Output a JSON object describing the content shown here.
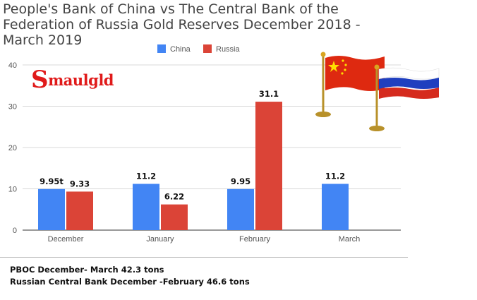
{
  "title": "People's Bank of China vs  The Central Bank of the Federation of Russia Gold Reserves December 2018 - March 2019",
  "logo_text": "Smaulgld",
  "colors": {
    "china": "#4285f4",
    "russia": "#db4437",
    "grid": "#d9d9d9",
    "title": "#444444"
  },
  "chart_data": {
    "type": "bar",
    "categories": [
      "December",
      "January",
      "February",
      "March"
    ],
    "series": [
      {
        "name": "China",
        "color": "#4285f4",
        "values": [
          9.95,
          11.2,
          9.95,
          11.2
        ],
        "labels": [
          "9.95t",
          "11.2",
          "9.95",
          "11.2"
        ]
      },
      {
        "name": "Russia",
        "color": "#db4437",
        "values": [
          9.33,
          6.22,
          31.1,
          null
        ],
        "labels": [
          "9.33",
          "6.22",
          "31.1",
          ""
        ]
      }
    ],
    "ylim": [
      0,
      40
    ],
    "yticks": [
      "0",
      "10",
      "20",
      "30",
      "40"
    ],
    "grid": true,
    "legend": "top-center",
    "xlabel": "",
    "ylabel": ""
  },
  "footnotes": [
    "PBOC December- March 42.3 tons",
    "Russian Central Bank December -February 46.6 tons"
  ],
  "images": {
    "flags": [
      "china-flag",
      "russia-flag"
    ]
  }
}
